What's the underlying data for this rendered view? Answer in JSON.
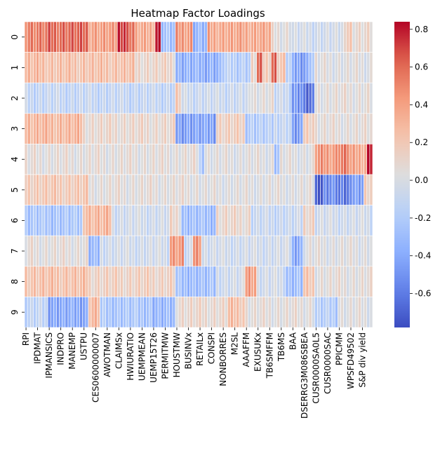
{
  "chart_data": {
    "type": "heatmap",
    "title": "Heatmap Factor Loadings",
    "xlabel": "",
    "ylabel": "",
    "row_labels": [
      "0",
      "1",
      "2",
      "3",
      "4",
      "5",
      "6",
      "7",
      "8",
      "9"
    ],
    "column_count": 120,
    "column_labels_shown": [
      "RPI",
      "IPDMAT",
      "IPMANSICS",
      "INDPRO",
      "MANEMP",
      "USTPU",
      "CES0600000007",
      "AWOTMAN",
      "CLAIMSx",
      "HWIURATIO",
      "UEMPMEAN",
      "UEMP15T26",
      "PERMITMW",
      "HOUSTMW",
      "BUSINVx",
      "RETAILx",
      "CONSPI",
      "NONBORRES",
      "M2SL",
      "AAAFFM",
      "EXUSUKx",
      "TB6SMFFM",
      "TB6MS",
      "BAA",
      "DSERRG3M086SBEA",
      "CUSR0000SA0L5",
      "CUSR0000SAC",
      "PPICMM",
      "WPSFD49502",
      "S&P div yield"
    ],
    "colormap": "coolwarm",
    "vmin": -0.78,
    "vmax": 0.84,
    "colorbar_ticks": [
      "-0.6",
      "-0.4",
      "-0.2",
      "0.0",
      "0.2",
      "0.4",
      "0.6",
      "0.8"
    ],
    "colorbar_tick_values": [
      -0.6,
      -0.4,
      -0.2,
      0.0,
      0.2,
      0.4,
      0.6,
      0.8
    ],
    "grid_lines": "white",
    "row_segments": [
      [
        [
          0,
          8,
          0.55
        ],
        [
          8,
          22,
          0.62
        ],
        [
          22,
          32,
          0.42
        ],
        [
          32,
          35,
          0.78
        ],
        [
          35,
          38,
          0.62
        ],
        [
          38,
          45,
          0.35
        ],
        [
          45,
          47,
          0.82
        ],
        [
          47,
          52,
          -0.28
        ],
        [
          52,
          58,
          0.45
        ],
        [
          58,
          63,
          -0.35
        ],
        [
          63,
          85,
          0.38
        ],
        [
          85,
          92,
          0.05
        ],
        [
          92,
          110,
          -0.05
        ],
        [
          110,
          113,
          0.2
        ],
        [
          113,
          120,
          0.08
        ]
      ],
      [
        [
          0,
          8,
          0.28
        ],
        [
          8,
          38,
          0.25
        ],
        [
          38,
          52,
          0.12
        ],
        [
          52,
          68,
          -0.38
        ],
        [
          68,
          78,
          -0.18
        ],
        [
          78,
          80,
          0.1
        ],
        [
          80,
          82,
          0.58
        ],
        [
          82,
          85,
          0.2
        ],
        [
          85,
          87,
          0.62
        ],
        [
          87,
          90,
          0.22
        ],
        [
          90,
          92,
          -0.15
        ],
        [
          92,
          98,
          -0.45
        ],
        [
          98,
          100,
          -0.2
        ],
        [
          100,
          120,
          0.02
        ]
      ],
      [
        [
          0,
          52,
          -0.12
        ],
        [
          52,
          54,
          0.2
        ],
        [
          54,
          78,
          -0.08
        ],
        [
          78,
          86,
          0.05
        ],
        [
          86,
          92,
          -0.1
        ],
        [
          92,
          96,
          -0.5
        ],
        [
          96,
          100,
          -0.68
        ],
        [
          100,
          120,
          0.05
        ]
      ],
      [
        [
          0,
          20,
          0.3
        ],
        [
          20,
          52,
          0.1
        ],
        [
          52,
          66,
          -0.45
        ],
        [
          66,
          76,
          0.15
        ],
        [
          76,
          86,
          -0.2
        ],
        [
          86,
          92,
          -0.1
        ],
        [
          92,
          96,
          -0.5
        ],
        [
          96,
          100,
          0.2
        ],
        [
          100,
          120,
          0.05
        ]
      ],
      [
        [
          0,
          60,
          0.05
        ],
        [
          60,
          62,
          -0.2
        ],
        [
          62,
          86,
          0.02
        ],
        [
          86,
          88,
          -0.25
        ],
        [
          88,
          100,
          0.02
        ],
        [
          100,
          108,
          0.45
        ],
        [
          108,
          112,
          0.55
        ],
        [
          112,
          118,
          0.38
        ],
        [
          118,
          120,
          0.84
        ]
      ],
      [
        [
          0,
          22,
          0.2
        ],
        [
          22,
          60,
          0.05
        ],
        [
          60,
          100,
          0.02
        ],
        [
          100,
          103,
          -0.72
        ],
        [
          103,
          108,
          -0.55
        ],
        [
          108,
          112,
          -0.65
        ],
        [
          112,
          117,
          -0.45
        ],
        [
          117,
          120,
          0.15
        ]
      ],
      [
        [
          0,
          20,
          -0.25
        ],
        [
          20,
          30,
          0.3
        ],
        [
          30,
          50,
          -0.05
        ],
        [
          50,
          54,
          0.1
        ],
        [
          54,
          66,
          -0.3
        ],
        [
          66,
          78,
          0.1
        ],
        [
          78,
          96,
          -0.1
        ],
        [
          96,
          100,
          0.15
        ],
        [
          100,
          120,
          -0.05
        ]
      ],
      [
        [
          0,
          22,
          0.05
        ],
        [
          22,
          26,
          -0.35
        ],
        [
          26,
          50,
          -0.05
        ],
        [
          50,
          55,
          0.45
        ],
        [
          55,
          58,
          -0.1
        ],
        [
          58,
          61,
          0.5
        ],
        [
          61,
          92,
          -0.05
        ],
        [
          92,
          96,
          -0.4
        ],
        [
          96,
          120,
          0.02
        ]
      ],
      [
        [
          0,
          22,
          0.25
        ],
        [
          22,
          52,
          0.15
        ],
        [
          52,
          66,
          -0.3
        ],
        [
          66,
          76,
          -0.05
        ],
        [
          76,
          80,
          0.45
        ],
        [
          80,
          90,
          -0.05
        ],
        [
          90,
          96,
          -0.3
        ],
        [
          96,
          100,
          0.2
        ],
        [
          100,
          120,
          0.05
        ]
      ],
      [
        [
          0,
          8,
          -0.15
        ],
        [
          8,
          22,
          -0.42
        ],
        [
          22,
          26,
          0.3
        ],
        [
          26,
          44,
          -0.25
        ],
        [
          44,
          52,
          -0.35
        ],
        [
          52,
          70,
          0.1
        ],
        [
          70,
          76,
          0.25
        ],
        [
          76,
          100,
          0.05
        ],
        [
          100,
          108,
          -0.2
        ],
        [
          108,
          120,
          0.02
        ]
      ]
    ]
  }
}
